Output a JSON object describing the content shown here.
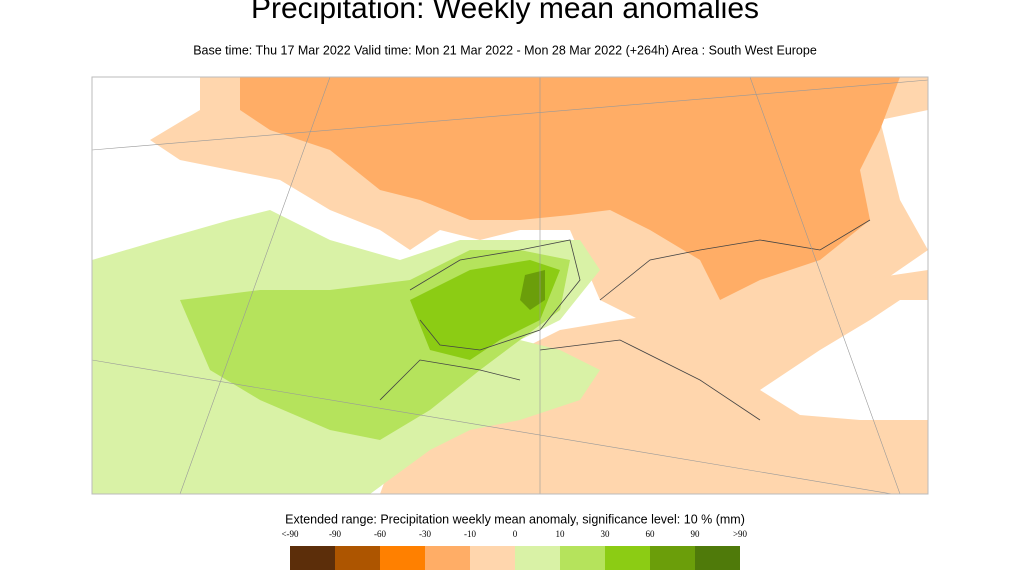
{
  "header": {
    "title": "Precipitation: Weekly mean anomalies",
    "subtitle": "Base time: Thu 17 Mar 2022 Valid time: Mon 21 Mar 2022 - Mon 28 Mar 2022 (+264h) Area : South West Europe"
  },
  "legend": {
    "title": "Extended range: Precipitation weekly mean anomaly, significance level: 10 % (mm)",
    "labels": [
      "<-90",
      "-90",
      "-60",
      "-30",
      "-10",
      "0",
      "10",
      "30",
      "60",
      "90",
      ">90"
    ],
    "colors": [
      "#5c2e0a",
      "#ad5500",
      "#ff8000",
      "#ffad66",
      "#ffd6ad",
      "#d9f2a6",
      "#b5e35c",
      "#8ccc14",
      "#6b9e0a",
      "#4f7a0a"
    ]
  }
}
